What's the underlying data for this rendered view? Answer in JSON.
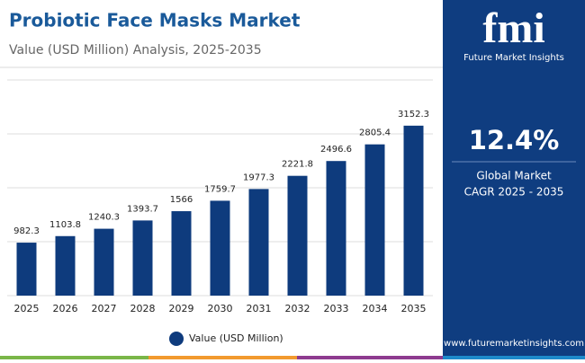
{
  "chart_data": {
    "type": "bar",
    "title": "Probiotic Face Masks Market",
    "subtitle": "Value (USD Million) Analysis, 2025-2035",
    "categories": [
      "2025",
      "2026",
      "2027",
      "2028",
      "2029",
      "2030",
      "2031",
      "2032",
      "2033",
      "2034",
      "2035"
    ],
    "series": [
      {
        "name": "Value (USD Million)",
        "color": "#0e3b7d",
        "values": [
          982.3,
          1103.8,
          1240.3,
          1393.7,
          1566,
          1759.7,
          1977.3,
          2221.8,
          2496.6,
          2805.4,
          3152.3
        ]
      }
    ],
    "ylim": [
      0,
      4000
    ],
    "yticks": [
      0,
      1000,
      2000,
      3000,
      4000
    ],
    "grid": true,
    "legend": "bottom"
  },
  "sidebar": {
    "logo": "fmi",
    "brand": "Future Market Insights",
    "stat": "12.4%",
    "stat_label": "Global Market",
    "stat_period": "CAGR 2025 - 2035",
    "website": "www.futuremarketinsights.com"
  }
}
